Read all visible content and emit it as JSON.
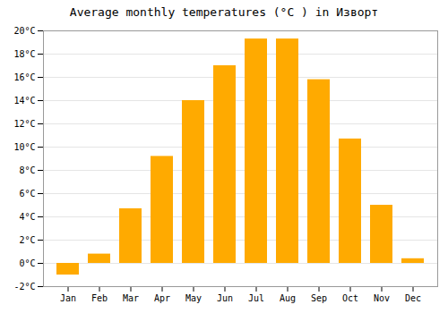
{
  "chart_data": {
    "type": "bar",
    "title": "Average monthly temperatures (°C ) in Изворт",
    "categories": [
      "Jan",
      "Feb",
      "Mar",
      "Apr",
      "May",
      "Jun",
      "Jul",
      "Aug",
      "Sep",
      "Oct",
      "Nov",
      "Dec"
    ],
    "values": [
      -1.0,
      0.8,
      4.7,
      9.2,
      14.0,
      17.0,
      19.3,
      19.3,
      15.8,
      10.7,
      5.0,
      0.4
    ],
    "color": "#FFAA00",
    "ylim": [
      -2,
      20
    ],
    "yticks": [
      {
        "value": -2,
        "label": "-2°C"
      },
      {
        "value": 0,
        "label": "0°C"
      },
      {
        "value": 2,
        "label": "2°C"
      },
      {
        "value": 4,
        "label": "4°C"
      },
      {
        "value": 6,
        "label": "6°C"
      },
      {
        "value": 8,
        "label": "8°C"
      },
      {
        "value": 10,
        "label": "10°C"
      },
      {
        "value": 12,
        "label": "12°C"
      },
      {
        "value": 14,
        "label": "14°C"
      },
      {
        "value": 16,
        "label": "16°C"
      },
      {
        "value": 18,
        "label": "18°C"
      },
      {
        "value": 20,
        "label": "20°C"
      }
    ],
    "grid": true
  }
}
